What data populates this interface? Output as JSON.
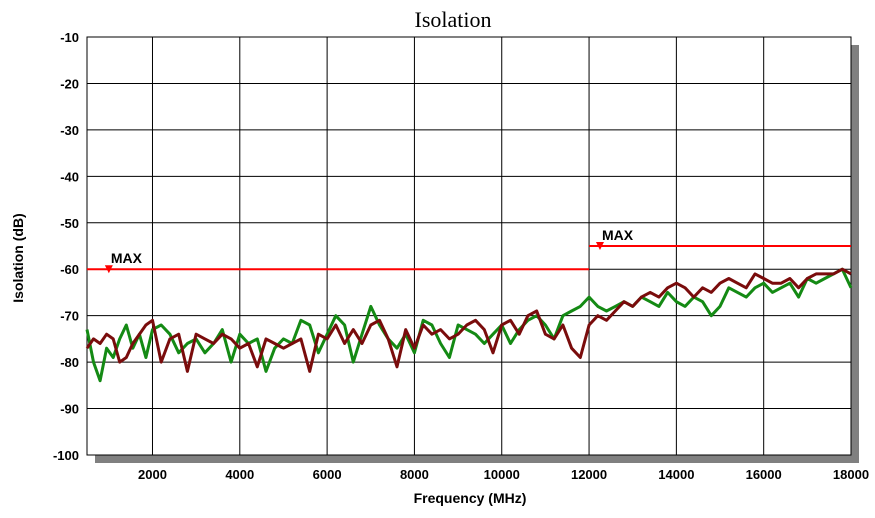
{
  "chart_data": {
    "type": "line",
    "title": "Isolation",
    "xlabel": "Frequency (MHz)",
    "ylabel": "Isolation (dB)",
    "xlim": [
      500,
      18000
    ],
    "ylim": [
      -100,
      -10
    ],
    "xticks": [
      2000,
      4000,
      6000,
      8000,
      10000,
      12000,
      14000,
      16000,
      18000
    ],
    "xtick_labels": [
      "2000",
      "4000",
      "6000",
      "8000",
      "10000",
      "12000",
      "14000",
      "16000",
      "18000"
    ],
    "yticks": [
      -10,
      -20,
      -30,
      -40,
      -50,
      -60,
      -70,
      -80,
      -90,
      -100
    ],
    "ytick_labels": [
      "-10",
      "-20",
      "-30",
      "-40",
      "-50",
      "-60",
      "-70",
      "-80",
      "-90",
      "-100"
    ],
    "grid": true,
    "legend": "none",
    "colors": {
      "green": "#148a14",
      "maroon": "#7a0c0c",
      "limit": "#ff0000",
      "shadow": "#808080"
    },
    "limits": [
      {
        "label": "MAX",
        "x": [
          500,
          12000
        ],
        "y": -60,
        "marker_x": 1000
      },
      {
        "label": "MAX",
        "x": [
          12000,
          18000
        ],
        "y": -55,
        "marker_x": 12250
      }
    ],
    "series": [
      {
        "color": "green",
        "x": [
          500,
          650,
          800,
          950,
          1100,
          1250,
          1400,
          1550,
          1700,
          1850,
          2000,
          2200,
          2400,
          2600,
          2800,
          3000,
          3200,
          3400,
          3600,
          3800,
          4000,
          4200,
          4400,
          4600,
          4800,
          5000,
          5200,
          5400,
          5600,
          5800,
          6000,
          6200,
          6400,
          6600,
          6800,
          7000,
          7200,
          7400,
          7600,
          7800,
          8000,
          8200,
          8400,
          8600,
          8800,
          9000,
          9200,
          9400,
          9600,
          9800,
          10000,
          10200,
          10400,
          10600,
          10800,
          11000,
          11200,
          11400,
          11600,
          11800,
          12000,
          12200,
          12400,
          12600,
          12800,
          13000,
          13200,
          13400,
          13600,
          13800,
          14000,
          14200,
          14400,
          14600,
          14800,
          15000,
          15200,
          15400,
          15600,
          15800,
          16000,
          16200,
          16400,
          16600,
          16800,
          17000,
          17200,
          17400,
          17600,
          17800,
          18000
        ],
        "y": [
          -73,
          -80,
          -84,
          -77,
          -79,
          -75,
          -72,
          -77,
          -74,
          -79,
          -73,
          -72,
          -74,
          -78,
          -76,
          -75,
          -78,
          -76,
          -73,
          -80,
          -74,
          -76,
          -75,
          -82,
          -77,
          -75,
          -76,
          -71,
          -72,
          -78,
          -74,
          -70,
          -72,
          -80,
          -74,
          -68,
          -72,
          -75,
          -77,
          -74,
          -78,
          -71,
          -72,
          -76,
          -79,
          -72,
          -73,
          -74,
          -76,
          -74,
          -72,
          -76,
          -73,
          -71,
          -70,
          -72,
          -75,
          -70,
          -69,
          -68,
          -66,
          -68,
          -69,
          -68,
          -67,
          -68,
          -66,
          -67,
          -68,
          -65,
          -67,
          -68,
          -66,
          -67,
          -70,
          -68,
          -64,
          -65,
          -66,
          -64,
          -63,
          -65,
          -64,
          -63,
          -66,
          -62,
          -63,
          -62,
          -61,
          -60,
          -64
        ]
      },
      {
        "color": "maroon",
        "x": [
          500,
          650,
          800,
          950,
          1100,
          1250,
          1400,
          1550,
          1700,
          1850,
          2000,
          2200,
          2400,
          2600,
          2800,
          3000,
          3200,
          3400,
          3600,
          3800,
          4000,
          4200,
          4400,
          4600,
          4800,
          5000,
          5200,
          5400,
          5600,
          5800,
          6000,
          6200,
          6400,
          6600,
          6800,
          7000,
          7200,
          7400,
          7600,
          7800,
          8000,
          8200,
          8400,
          8600,
          8800,
          9000,
          9200,
          9400,
          9600,
          9800,
          10000,
          10200,
          10400,
          10600,
          10800,
          11000,
          11200,
          11400,
          11600,
          11800,
          12000,
          12200,
          12400,
          12600,
          12800,
          13000,
          13200,
          13400,
          13600,
          13800,
          14000,
          14200,
          14400,
          14600,
          14800,
          15000,
          15200,
          15400,
          15600,
          15800,
          16000,
          16200,
          16400,
          16600,
          16800,
          17000,
          17200,
          17400,
          17600,
          17800,
          18000
        ],
        "y": [
          -77,
          -75,
          -76,
          -74,
          -75,
          -80,
          -79,
          -76,
          -74,
          -72,
          -71,
          -80,
          -75,
          -74,
          -82,
          -74,
          -75,
          -76,
          -74,
          -75,
          -77,
          -76,
          -81,
          -75,
          -76,
          -77,
          -76,
          -75,
          -82,
          -74,
          -75,
          -72,
          -76,
          -73,
          -76,
          -72,
          -71,
          -75,
          -81,
          -73,
          -77,
          -72,
          -74,
          -73,
          -75,
          -74,
          -72,
          -71,
          -73,
          -78,
          -72,
          -71,
          -74,
          -70,
          -69,
          -74,
          -75,
          -72,
          -77,
          -79,
          -72,
          -70,
          -71,
          -69,
          -67,
          -68,
          -66,
          -65,
          -66,
          -64,
          -63,
          -64,
          -66,
          -64,
          -65,
          -63,
          -62,
          -63,
          -64,
          -61,
          -62,
          -63,
          -63,
          -62,
          -64,
          -62,
          -61,
          -61,
          -61,
          -60,
          -61
        ]
      }
    ]
  }
}
